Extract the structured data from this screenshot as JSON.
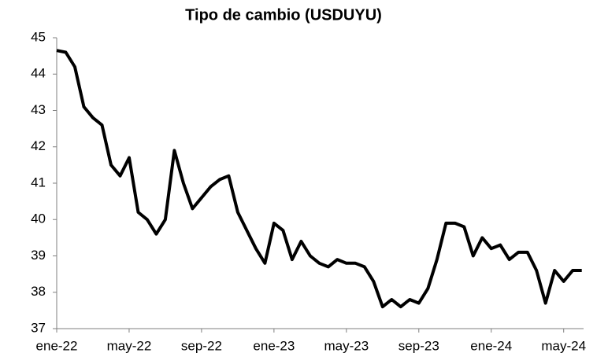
{
  "chart_data": {
    "type": "line",
    "title": "Tipo de cambio (USDUYU)",
    "categories": [
      "ene-22",
      null,
      null,
      null,
      null,
      null,
      null,
      null,
      "may-22",
      null,
      null,
      null,
      null,
      null,
      null,
      null,
      "sep-22",
      null,
      null,
      null,
      null,
      null,
      null,
      null,
      "ene-23",
      null,
      null,
      null,
      null,
      null,
      null,
      null,
      "may-23",
      null,
      null,
      null,
      null,
      null,
      null,
      null,
      "sep-23",
      null,
      null,
      null,
      null,
      null,
      null,
      null,
      "ene-24",
      null,
      null,
      null,
      null,
      null,
      null,
      null,
      "may-24",
      null,
      null
    ],
    "series": [
      {
        "name": "USDUYU",
        "color": "#000000",
        "values": [
          44.65,
          44.6,
          44.2,
          43.1,
          42.8,
          42.6,
          41.5,
          41.2,
          41.7,
          40.2,
          40.0,
          39.6,
          40.0,
          41.9,
          41.0,
          40.3,
          40.6,
          40.9,
          41.1,
          41.2,
          40.2,
          39.7,
          39.2,
          38.8,
          39.9,
          39.7,
          38.9,
          39.4,
          39.0,
          38.8,
          38.7,
          38.9,
          38.8,
          38.8,
          38.7,
          38.3,
          37.6,
          37.8,
          37.6,
          37.8,
          37.7,
          38.1,
          38.9,
          39.9,
          39.9,
          39.8,
          39.0,
          39.5,
          39.2,
          39.3,
          38.9,
          39.1,
          39.1,
          38.6,
          37.7,
          38.6,
          38.3,
          38.6,
          38.6
        ]
      }
    ],
    "ylim": [
      37,
      45
    ],
    "yticks": [
      37,
      38,
      39,
      40,
      41,
      42,
      43,
      44,
      45
    ],
    "grid": false
  }
}
